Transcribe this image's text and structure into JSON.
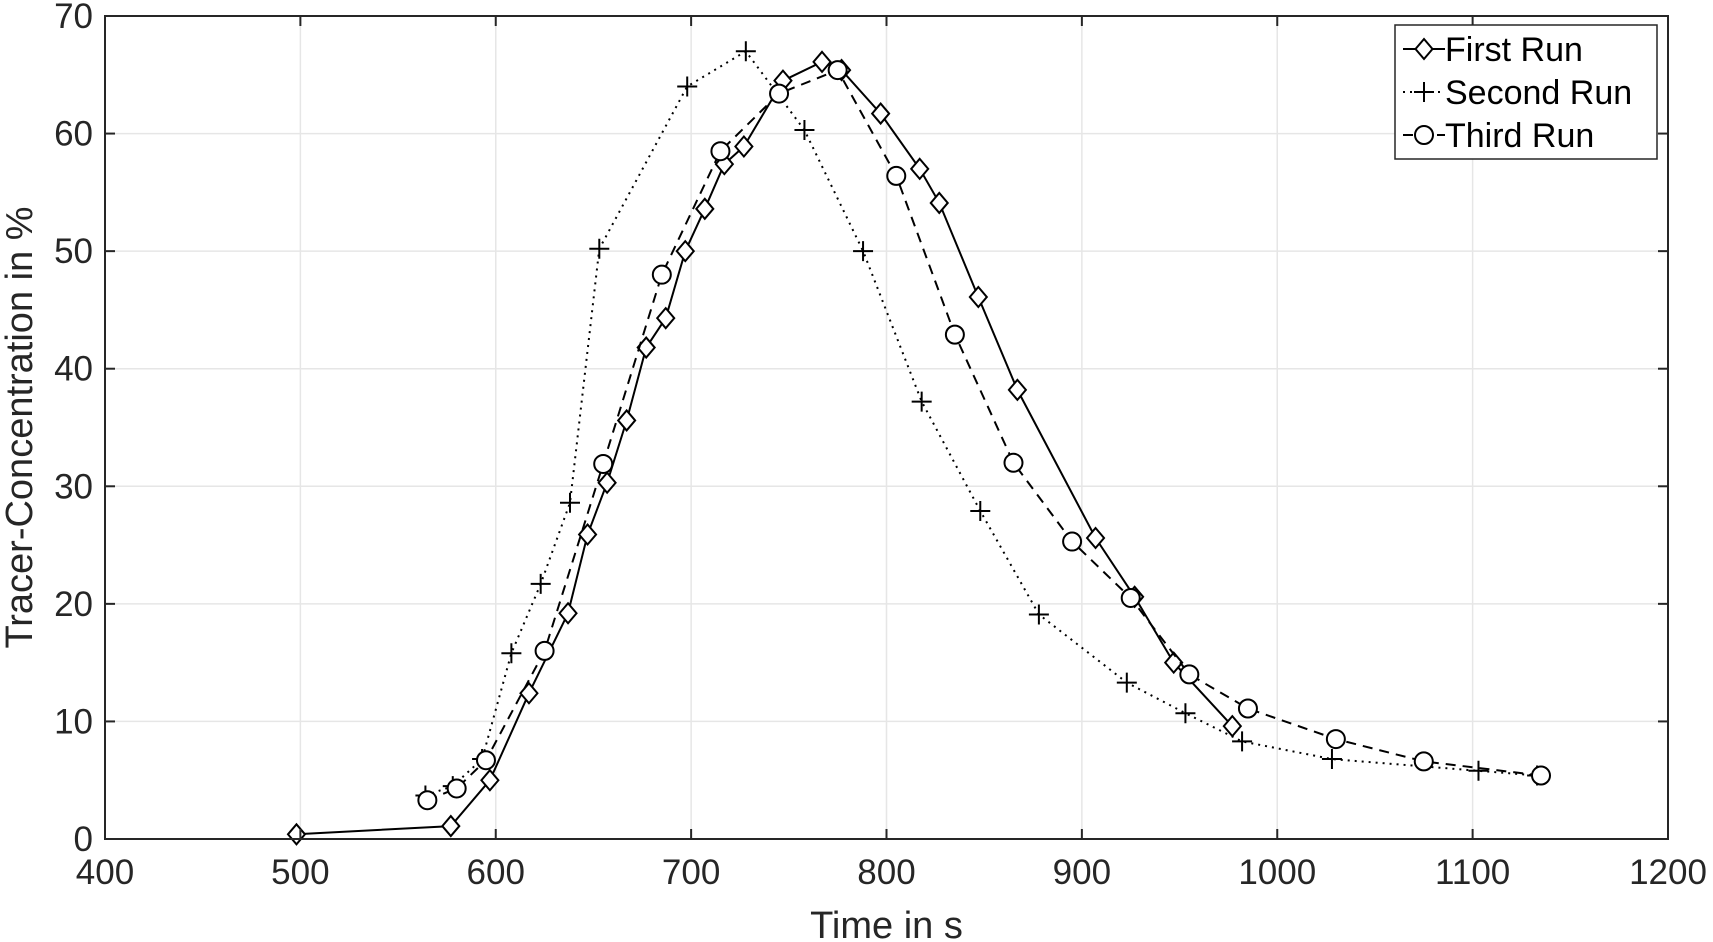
{
  "chart_data": {
    "type": "line",
    "title": "",
    "xlabel": "Time in s",
    "ylabel": "Tracer-Concentration in %",
    "xlim": [
      400,
      1200
    ],
    "ylim": [
      0,
      70
    ],
    "xticks": [
      400,
      500,
      600,
      700,
      800,
      900,
      1000,
      1100,
      1200
    ],
    "yticks": [
      0,
      10,
      20,
      30,
      40,
      50,
      60,
      70
    ],
    "grid": true,
    "legend_position": "top-right",
    "series": [
      {
        "name": "First Run",
        "line_style": "solid",
        "marker": "diamond",
        "points": [
          [
            498,
            0.4
          ],
          [
            577,
            1.1
          ],
          [
            597,
            5.0
          ],
          [
            617,
            12.4
          ],
          [
            637,
            19.2
          ],
          [
            647,
            25.9
          ],
          [
            657,
            30.3
          ],
          [
            667,
            35.6
          ],
          [
            677,
            41.8
          ],
          [
            687,
            44.3
          ],
          [
            697,
            50.0
          ],
          [
            707,
            53.6
          ],
          [
            717,
            57.4
          ],
          [
            727,
            58.9
          ],
          [
            747,
            64.5
          ],
          [
            767,
            66.1
          ],
          [
            777,
            65.4
          ],
          [
            797,
            61.7
          ],
          [
            817,
            57.0
          ],
          [
            827,
            54.1
          ],
          [
            847,
            46.1
          ],
          [
            867,
            38.2
          ],
          [
            907,
            25.6
          ],
          [
            927,
            20.6
          ],
          [
            947,
            15.0
          ],
          [
            977,
            9.6
          ]
        ]
      },
      {
        "name": "Second Run",
        "line_style": "dotted",
        "marker": "plus",
        "points": [
          [
            564,
            3.7
          ],
          [
            578,
            4.5
          ],
          [
            593,
            6.8
          ],
          [
            608,
            15.8
          ],
          [
            623,
            21.7
          ],
          [
            638,
            28.6
          ],
          [
            653,
            50.2
          ],
          [
            698,
            64.0
          ],
          [
            728,
            67.0
          ],
          [
            758,
            60.3
          ],
          [
            788,
            50.0
          ],
          [
            818,
            37.2
          ],
          [
            848,
            27.9
          ],
          [
            878,
            19.1
          ],
          [
            923,
            13.3
          ],
          [
            953,
            10.7
          ],
          [
            982,
            8.3
          ],
          [
            1028,
            6.8
          ],
          [
            1103,
            5.8
          ],
          [
            1133,
            5.4
          ]
        ]
      },
      {
        "name": "Third Run",
        "line_style": "dashed",
        "marker": "circle",
        "points": [
          [
            565,
            3.3
          ],
          [
            580,
            4.3
          ],
          [
            595,
            6.7
          ],
          [
            625,
            16.0
          ],
          [
            655,
            31.9
          ],
          [
            685,
            48.0
          ],
          [
            715,
            58.5
          ],
          [
            745,
            63.4
          ],
          [
            775,
            65.4
          ],
          [
            805,
            56.4
          ],
          [
            835,
            42.9
          ],
          [
            865,
            32.0
          ],
          [
            895,
            25.3
          ],
          [
            925,
            20.5
          ],
          [
            955,
            14.0
          ],
          [
            985,
            11.1
          ],
          [
            1030,
            8.5
          ],
          [
            1075,
            6.6
          ],
          [
            1135,
            5.4
          ]
        ]
      }
    ]
  }
}
